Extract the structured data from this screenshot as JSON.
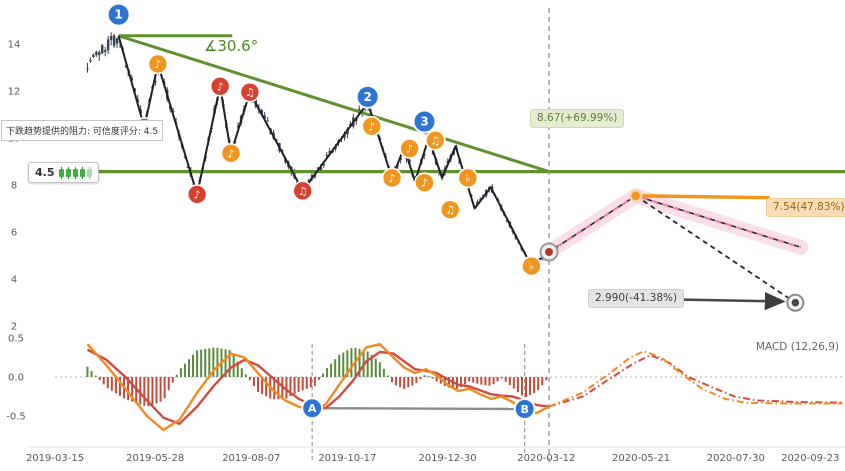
{
  "colors": {
    "up_green": "#61902e",
    "blue": "#2e74d6",
    "red_marker": "#d6402e",
    "orange_marker": "#f0951e",
    "macd": "#f28a1d",
    "signal": "#d14b42",
    "hist_pos": "#5c8a3c",
    "hist_neg": "#bf4b3b",
    "candle": "#3a4150",
    "pink": "#ef7fae"
  },
  "chart_data": [
    {
      "type": "candlestick",
      "title": "",
      "x_ticks": [
        {
          "label": "2019-03-15",
          "t": 0
        },
        {
          "label": "2019-05-28",
          "t": 74
        },
        {
          "label": "2019-08-07",
          "t": 145
        },
        {
          "label": "2019-10-17",
          "t": 216
        },
        {
          "label": "2019-12-30",
          "t": 290
        },
        {
          "label": "2020-03-12",
          "t": 363
        },
        {
          "label": "2020-05-21",
          "t": 433
        },
        {
          "label": "2020-07-30",
          "t": 503
        },
        {
          "label": "2020-09-23",
          "t": 558
        }
      ],
      "y_ticks": [
        14,
        12,
        10,
        8,
        6,
        4,
        2
      ],
      "ylim": [
        1.6,
        15.5
      ],
      "noise_seed": 7,
      "candle_count": 160,
      "candle_t_range": [
        24,
        371
      ],
      "price_path": [
        [
          24,
          13.2
        ],
        [
          47,
          14.35
        ],
        [
          66,
          10.45
        ],
        [
          76,
          13.15
        ],
        [
          105,
          7.6
        ],
        [
          122,
          12.2
        ],
        [
          130,
          9.35
        ],
        [
          144,
          11.95
        ],
        [
          183,
          7.75
        ],
        [
          231,
          11.5
        ],
        [
          249,
          8.3
        ],
        [
          258,
          9.6
        ],
        [
          266,
          8.15
        ],
        [
          276,
          10.0
        ],
        [
          286,
          8.3
        ],
        [
          296,
          9.65
        ],
        [
          310,
          7.0
        ],
        [
          322,
          7.9
        ],
        [
          352,
          4.55
        ],
        [
          365,
          5.15
        ],
        [
          371,
          5.3
        ]
      ],
      "zigzag_slice": [
        1,
        20
      ],
      "markers": [
        {
          "t": 66,
          "p": 10.45,
          "c": "red",
          "g": "♪"
        },
        {
          "t": 76,
          "p": 13.15,
          "c": "orange",
          "g": "♪"
        },
        {
          "t": 105,
          "p": 7.6,
          "c": "red",
          "g": "♪"
        },
        {
          "t": 122,
          "p": 12.2,
          "c": "red",
          "g": "♪"
        },
        {
          "t": 130,
          "p": 9.35,
          "c": "orange",
          "g": "♪"
        },
        {
          "t": 144,
          "p": 11.95,
          "c": "red",
          "g": "♫"
        },
        {
          "t": 183,
          "p": 7.75,
          "c": "red",
          "g": "♫"
        },
        {
          "t": 234,
          "p": 10.5,
          "c": "orange",
          "g": "♪"
        },
        {
          "t": 249,
          "p": 8.3,
          "c": "orange",
          "g": "♪"
        },
        {
          "t": 262,
          "p": 9.55,
          "c": "orange",
          "g": "♪"
        },
        {
          "t": 273,
          "p": 8.1,
          "c": "orange",
          "g": "♪"
        },
        {
          "t": 281,
          "p": 9.9,
          "c": "orange",
          "g": "♫"
        },
        {
          "t": 292,
          "p": 6.95,
          "c": "orange",
          "g": "♫"
        },
        {
          "t": 305,
          "p": 8.3,
          "c": "orange",
          "g": "♭"
        },
        {
          "t": 352,
          "p": 4.55,
          "c": "orange",
          "g": "♭"
        }
      ],
      "wave_labels": [
        {
          "t": 47,
          "p": 15.25,
          "label": "1"
        },
        {
          "t": 231,
          "p": 11.75,
          "label": "2"
        },
        {
          "t": 273,
          "p": 10.7,
          "label": "3"
        }
      ],
      "trend_lines": {
        "resistance_price": 8.57,
        "down_trend": {
          "t1": 47,
          "p1": 14.35,
          "t2": 365,
          "p2": 8.57
        },
        "angle_ray_t2": 131,
        "angle_label": "∡30.6°"
      },
      "current_point": {
        "t": 365,
        "p": 5.15
      },
      "vline_t": 365,
      "projections": {
        "pink_path": [
          [
            365,
            5.15
          ],
          [
            429,
            7.54
          ],
          [
            551,
            5.35
          ]
        ],
        "black_path": [
          [
            429,
            7.54
          ],
          [
            547,
            2.99
          ]
        ],
        "orange_line": [
          [
            429,
            7.54
          ],
          [
            527,
            7.46
          ]
        ],
        "orange_dot": {
          "t": 429,
          "p": 7.54
        },
        "end_ring": {
          "t": 547,
          "p": 2.99
        }
      },
      "labels": {
        "upper_target": "8.67(+69.99%)",
        "mid_target": "7.54(47.83%)",
        "lower_target": "2.990(-41.38%)"
      },
      "tooltip": "下跌趋势提供的阻力: 可信度评分: 4.5",
      "rating_badge": {
        "score": "4.5",
        "icons": 5
      }
    },
    {
      "type": "macd",
      "label": "MACD (12,26,9)",
      "y_ticks": [
        0.5,
        0.0,
        -0.5
      ],
      "ylim": [
        -0.75,
        0.6
      ],
      "macd_line": [
        [
          24,
          0.42
        ],
        [
          38,
          0.15
        ],
        [
          52,
          -0.15
        ],
        [
          68,
          -0.5
        ],
        [
          80,
          -0.68
        ],
        [
          92,
          -0.55
        ],
        [
          105,
          -0.2
        ],
        [
          118,
          0.1
        ],
        [
          130,
          0.3
        ],
        [
          140,
          0.25
        ],
        [
          150,
          0.05
        ],
        [
          160,
          -0.15
        ],
        [
          170,
          -0.3
        ],
        [
          180,
          -0.38
        ],
        [
          192,
          -0.44
        ],
        [
          200,
          -0.35
        ],
        [
          210,
          -0.1
        ],
        [
          220,
          0.15
        ],
        [
          230,
          0.38
        ],
        [
          240,
          0.42
        ],
        [
          250,
          0.25
        ],
        [
          258,
          0.12
        ],
        [
          266,
          0.05
        ],
        [
          274,
          0.1
        ],
        [
          282,
          0.02
        ],
        [
          290,
          -0.1
        ],
        [
          298,
          -0.18
        ],
        [
          306,
          -0.15
        ],
        [
          314,
          -0.22
        ],
        [
          322,
          -0.28
        ],
        [
          330,
          -0.25
        ],
        [
          338,
          -0.32
        ],
        [
          347,
          -0.44
        ],
        [
          356,
          -0.46
        ],
        [
          365,
          -0.38
        ]
      ],
      "signal_line": [
        [
          24,
          0.35
        ],
        [
          38,
          0.22
        ],
        [
          52,
          0.0
        ],
        [
          68,
          -0.3
        ],
        [
          80,
          -0.52
        ],
        [
          92,
          -0.6
        ],
        [
          105,
          -0.38
        ],
        [
          118,
          -0.1
        ],
        [
          130,
          0.12
        ],
        [
          140,
          0.22
        ],
        [
          150,
          0.15
        ],
        [
          160,
          0.0
        ],
        [
          170,
          -0.15
        ],
        [
          180,
          -0.28
        ],
        [
          192,
          -0.38
        ],
        [
          200,
          -0.4
        ],
        [
          210,
          -0.25
        ],
        [
          220,
          -0.05
        ],
        [
          230,
          0.2
        ],
        [
          240,
          0.32
        ],
        [
          250,
          0.3
        ],
        [
          258,
          0.2
        ],
        [
          266,
          0.1
        ],
        [
          274,
          0.08
        ],
        [
          282,
          0.05
        ],
        [
          290,
          -0.03
        ],
        [
          298,
          -0.1
        ],
        [
          306,
          -0.12
        ],
        [
          314,
          -0.17
        ],
        [
          322,
          -0.22
        ],
        [
          330,
          -0.24
        ],
        [
          338,
          -0.25
        ],
        [
          347,
          -0.3
        ],
        [
          356,
          -0.36
        ],
        [
          365,
          -0.38
        ]
      ],
      "macd_proj": [
        [
          365,
          -0.38
        ],
        [
          390,
          -0.2
        ],
        [
          410,
          0.05
        ],
        [
          425,
          0.25
        ],
        [
          435,
          0.33
        ],
        [
          448,
          0.25
        ],
        [
          462,
          0.05
        ],
        [
          478,
          -0.15
        ],
        [
          495,
          -0.28
        ],
        [
          510,
          -0.33
        ],
        [
          540,
          -0.34
        ],
        [
          582,
          -0.34
        ]
      ],
      "signal_proj": [
        [
          365,
          -0.38
        ],
        [
          390,
          -0.25
        ],
        [
          410,
          -0.02
        ],
        [
          428,
          0.18
        ],
        [
          440,
          0.28
        ],
        [
          454,
          0.18
        ],
        [
          468,
          0.0
        ],
        [
          484,
          -0.12
        ],
        [
          502,
          -0.25
        ],
        [
          518,
          -0.3
        ],
        [
          548,
          -0.32
        ],
        [
          582,
          -0.33
        ]
      ],
      "hist": {
        "t_start": 24,
        "t_end": 365,
        "step": 3,
        "scale": 1.9
      },
      "divergence": {
        "a": {
          "t": 190,
          "v": -0.4,
          "label": "A"
        },
        "b": {
          "t": 347,
          "v": -0.41,
          "label": "B"
        }
      }
    }
  ]
}
